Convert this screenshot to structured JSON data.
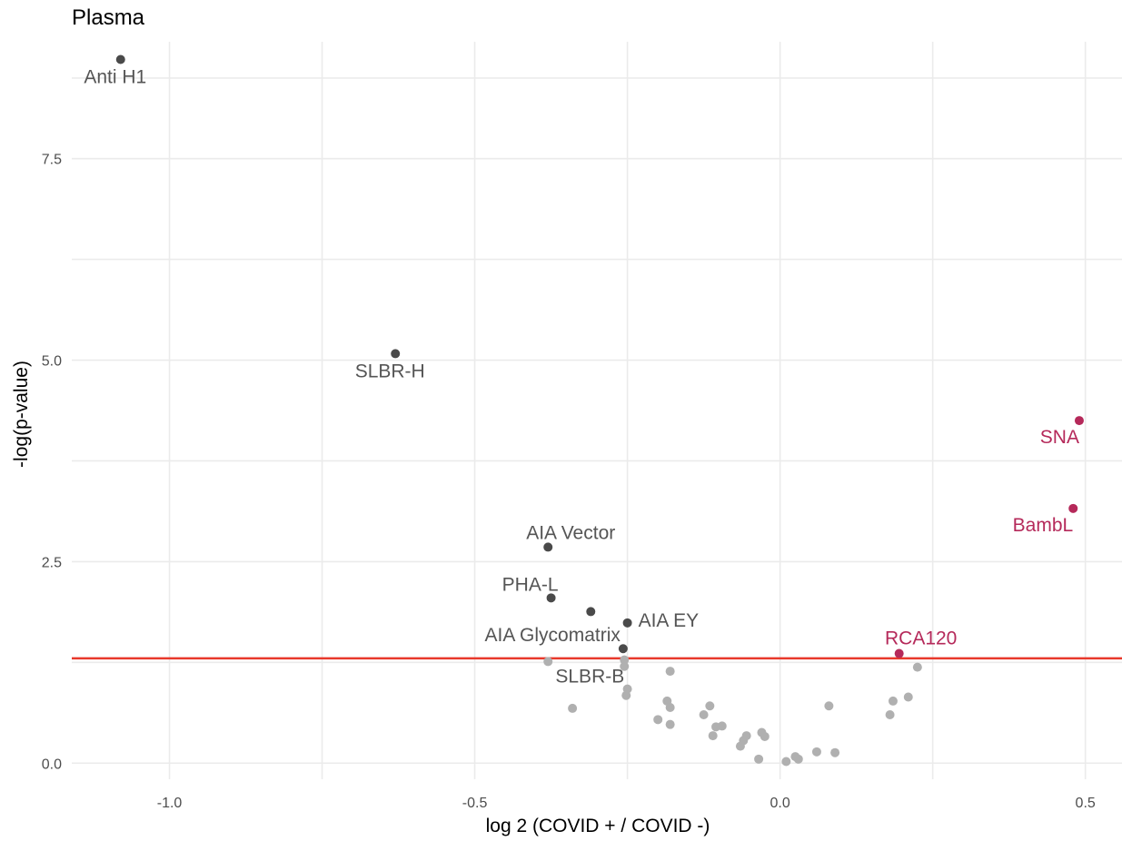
{
  "chart_data": {
    "type": "scatter",
    "title": "Plasma",
    "xlabel": "log 2 (COVID + / COVID -)",
    "ylabel": "-log(p-value)",
    "xlim": [
      -1.16,
      0.56
    ],
    "ylim": [
      -0.2,
      8.95
    ],
    "x_ticks": [
      -1.0,
      -0.5,
      0.0,
      0.5
    ],
    "x_tick_labels": [
      "-1.0",
      "-0.5",
      "0.0",
      "0.5"
    ],
    "y_ticks": [
      0.0,
      2.5,
      5.0,
      7.5
    ],
    "y_tick_labels": [
      "0.0",
      "2.5",
      "5.0",
      "7.5"
    ],
    "grid": true,
    "threshold_line": {
      "y": 1.3,
      "color": "#e8392b"
    },
    "colors": {
      "down": "#4a4a4a",
      "up": "#b5295a",
      "nonsig": "#b0b0b0"
    },
    "labeled_points": [
      {
        "x": -1.08,
        "y": 8.73,
        "label": "Anti H1",
        "group": "down",
        "label_pos": "below"
      },
      {
        "x": -0.63,
        "y": 5.08,
        "label": "SLBR-H",
        "group": "down",
        "label_pos": "below"
      },
      {
        "x": -0.38,
        "y": 2.68,
        "label": "AIA Vector",
        "group": "down",
        "label_pos": "above-right"
      },
      {
        "x": -0.375,
        "y": 2.05,
        "label": "PHA-L",
        "group": "down",
        "label_pos": "above-left"
      },
      {
        "x": -0.31,
        "y": 1.88,
        "label": "",
        "group": "down"
      },
      {
        "x": -0.25,
        "y": 1.74,
        "label": "AIA EY",
        "group": "down",
        "label_pos": "right"
      },
      {
        "x": -0.257,
        "y": 1.42,
        "label": "AIA Glycomatrix",
        "group": "down",
        "label_pos": "left"
      },
      {
        "x": -0.255,
        "y": 1.28,
        "label": "SLBR-B",
        "group": "nonsig",
        "label_pos": "below-left"
      },
      {
        "x": 0.49,
        "y": 4.25,
        "label": "SNA",
        "group": "up",
        "label_pos": "below-left"
      },
      {
        "x": 0.48,
        "y": 3.16,
        "label": "BambL",
        "group": "up",
        "label_pos": "below-left"
      },
      {
        "x": 0.195,
        "y": 1.36,
        "label": "RCA120",
        "group": "up",
        "label_pos": "above"
      }
    ],
    "nonsig_points": [
      [
        -0.38,
        1.26
      ],
      [
        -0.255,
        1.2
      ],
      [
        -0.25,
        0.92
      ],
      [
        -0.252,
        0.84
      ],
      [
        -0.18,
        1.14
      ],
      [
        -0.34,
        0.68
      ],
      [
        -0.2,
        0.54
      ],
      [
        -0.18,
        0.48
      ],
      [
        -0.185,
        0.77
      ],
      [
        -0.18,
        0.69
      ],
      [
        -0.125,
        0.6
      ],
      [
        -0.115,
        0.71
      ],
      [
        -0.11,
        0.34
      ],
      [
        -0.105,
        0.45
      ],
      [
        -0.095,
        0.46
      ],
      [
        -0.065,
        0.21
      ],
      [
        -0.06,
        0.28
      ],
      [
        -0.055,
        0.34
      ],
      [
        -0.035,
        0.05
      ],
      [
        -0.03,
        0.38
      ],
      [
        -0.025,
        0.33
      ],
      [
        0.01,
        0.02
      ],
      [
        0.025,
        0.08
      ],
      [
        0.03,
        0.05
      ],
      [
        0.06,
        0.14
      ],
      [
        0.08,
        0.71
      ],
      [
        0.09,
        0.13
      ],
      [
        0.18,
        0.6
      ],
      [
        0.185,
        0.77
      ],
      [
        0.21,
        0.82
      ],
      [
        0.225,
        1.19
      ]
    ]
  }
}
